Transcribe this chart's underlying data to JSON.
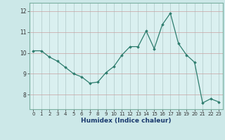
{
  "x": [
    0,
    1,
    2,
    3,
    4,
    5,
    6,
    7,
    8,
    9,
    10,
    11,
    12,
    13,
    14,
    15,
    16,
    17,
    18,
    19,
    20,
    21,
    22,
    23
  ],
  "y": [
    10.1,
    10.1,
    9.8,
    9.6,
    9.3,
    9.0,
    8.85,
    8.55,
    8.6,
    9.05,
    9.35,
    9.9,
    10.3,
    10.3,
    11.05,
    10.2,
    11.35,
    11.9,
    10.45,
    9.9,
    9.55,
    7.6,
    7.8,
    7.65
  ],
  "line_color": "#2e7d6e",
  "marker": "D",
  "marker_size": 1.8,
  "linewidth": 0.9,
  "xlabel": "Humidex (Indice chaleur)",
  "bg_color": "#cce8e8",
  "plot_bg_color": "#daf0f0",
  "grid_color_v": "#b0c8c8",
  "grid_color_h": "#c8a0a0",
  "xlim": [
    -0.5,
    23.5
  ],
  "ylim": [
    7.3,
    12.4
  ],
  "yticks": [
    8,
    9,
    10,
    11,
    12
  ],
  "xticks": [
    0,
    1,
    2,
    3,
    4,
    5,
    6,
    7,
    8,
    9,
    10,
    11,
    12,
    13,
    14,
    15,
    16,
    17,
    18,
    19,
    20,
    21,
    22,
    23
  ],
  "tick_fontsize": 5,
  "xlabel_fontsize": 6.5,
  "xlabel_color": "#1a3a6e"
}
